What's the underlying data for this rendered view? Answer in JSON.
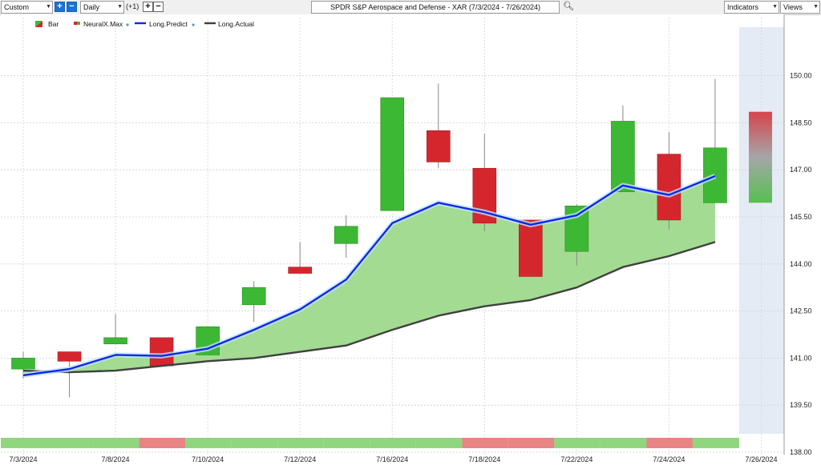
{
  "toolbar": {
    "mode_select": "Custom",
    "interval_select": "Daily",
    "offset": "(+1)",
    "title": "SPDR S&P Aerospace and Defense - XAR (7/3/2024 - 7/26/2024)",
    "indicators": "Indicators",
    "views": "Views",
    "plus": "+",
    "minus": "−"
  },
  "chart_data": {
    "type": "candlestick",
    "legend": [
      "Bar",
      "NeuralX.Max",
      "Long.Predict",
      "Long.Actual"
    ],
    "legend_placement": "top-left",
    "colors": {
      "up": "#3db834",
      "down": "#d5262e",
      "predict": "#1028e8",
      "actual": "#404040",
      "fill": "#9ed98c"
    },
    "ylim": [
      138.0,
      150.5
    ],
    "yticks": [
      138.0,
      139.5,
      141.0,
      142.5,
      144.0,
      145.5,
      147.0,
      148.5,
      150.0
    ],
    "ytick_labels": [
      "138.00",
      "139.50",
      "141.00",
      "142.50",
      "144.00",
      "145.50",
      "147.00",
      "148.50",
      "150.00"
    ],
    "x_labels": [
      "7/3/2024",
      "7/8/2024",
      "7/10/2024",
      "7/12/2024",
      "7/16/2024",
      "7/18/2024",
      "7/22/2024",
      "7/24/2024",
      "7/26/2024"
    ],
    "grid": true,
    "bars": [
      {
        "date": "7/3/2024",
        "open": 140.65,
        "high": 141.2,
        "low": 140.35,
        "close": 141.0
      },
      {
        "date": "7/5/2024",
        "open": 141.2,
        "high": 141.2,
        "low": 139.75,
        "close": 140.9
      },
      {
        "date": "7/8/2024",
        "open": 141.45,
        "high": 142.4,
        "low": 141.45,
        "close": 141.65
      },
      {
        "date": "7/9/2024",
        "open": 141.65,
        "high": 141.65,
        "low": 140.75,
        "close": 140.75
      },
      {
        "date": "7/10/2024",
        "open": 141.1,
        "high": 142.0,
        "low": 141.1,
        "close": 142.0
      },
      {
        "date": "7/11/2024",
        "open": 142.7,
        "high": 143.45,
        "low": 142.15,
        "close": 143.25
      },
      {
        "date": "7/12/2024",
        "open": 143.9,
        "high": 144.7,
        "low": 143.7,
        "close": 143.7
      },
      {
        "date": "7/15/2024",
        "open": 144.65,
        "high": 145.55,
        "low": 144.2,
        "close": 145.2
      },
      {
        "date": "7/16/2024",
        "open": 145.7,
        "high": 149.3,
        "low": 145.7,
        "close": 149.3
      },
      {
        "date": "7/17/2024",
        "open": 148.25,
        "high": 149.75,
        "low": 147.05,
        "close": 147.25
      },
      {
        "date": "7/18/2024",
        "open": 147.05,
        "high": 148.15,
        "low": 145.05,
        "close": 145.3
      },
      {
        "date": "7/19/2024",
        "open": 145.4,
        "high": 145.4,
        "low": 143.6,
        "close": 143.6
      },
      {
        "date": "7/22/2024",
        "open": 144.4,
        "high": 145.9,
        "low": 143.95,
        "close": 145.85
      },
      {
        "date": "7/23/2024",
        "open": 146.3,
        "high": 149.05,
        "low": 146.3,
        "close": 148.55
      },
      {
        "date": "7/24/2024",
        "open": 147.5,
        "high": 148.2,
        "low": 145.1,
        "close": 145.4
      },
      {
        "date": "7/25/2024",
        "open": 145.95,
        "high": 149.9,
        "low": 145.95,
        "close": 147.7
      }
    ],
    "neuralx_max": {
      "date": "7/26/2024",
      "high": 148.85,
      "low": 145.95
    },
    "long_predict": [
      140.45,
      140.65,
      141.1,
      141.07,
      141.3,
      141.9,
      142.55,
      143.5,
      145.3,
      145.95,
      145.65,
      145.25,
      145.55,
      146.5,
      146.2,
      146.8
    ],
    "long_actual": [
      140.6,
      140.55,
      140.6,
      140.75,
      140.9,
      141.0,
      141.2,
      141.4,
      141.9,
      142.35,
      142.65,
      142.85,
      143.25,
      143.9,
      144.25,
      144.7
    ],
    "signal_strip": [
      "up",
      "up",
      "up",
      "down",
      "up",
      "up",
      "up",
      "up",
      "up",
      "up",
      "down",
      "down",
      "up",
      "up",
      "down",
      "up"
    ]
  }
}
